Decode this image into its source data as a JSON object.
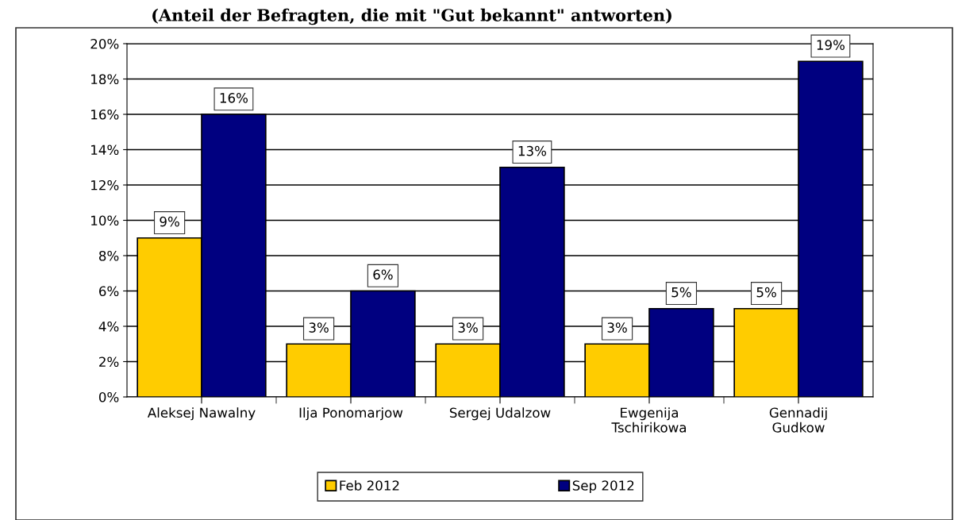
{
  "chart_data": {
    "type": "bar",
    "title": "(Anteil der Befragten, die mit \"Gut bekannt\" antworten)",
    "categories": [
      "Aleksej Nawalny",
      "Ilja Ponomarjow",
      "Sergej Udalzow",
      "Ewgenija\nTschirikowa",
      "Gennadij\nGudkow"
    ],
    "series": [
      {
        "name": "Feb 2012",
        "color": "#ffcc00",
        "values": [
          9,
          3,
          3,
          3,
          5
        ],
        "value_labels": [
          "9%",
          "3%",
          "3%",
          "3%",
          "5%"
        ]
      },
      {
        "name": "Sep 2012",
        "color": "#000080",
        "values": [
          16,
          6,
          13,
          5,
          19
        ],
        "value_labels": [
          "16%",
          "6%",
          "13%",
          "5%",
          "19%"
        ]
      }
    ],
    "ylim": [
      0,
      20
    ],
    "yticks": [
      {
        "value": 0,
        "label": "0%"
      },
      {
        "value": 2,
        "label": "2%"
      },
      {
        "value": 4,
        "label": "4%"
      },
      {
        "value": 6,
        "label": "6%"
      },
      {
        "value": 8,
        "label": "8%"
      },
      {
        "value": 10,
        "label": "10%"
      },
      {
        "value": 12,
        "label": "12%"
      },
      {
        "value": 14,
        "label": "14%"
      },
      {
        "value": 16,
        "label": "16%"
      },
      {
        "value": 18,
        "label": "18%"
      },
      {
        "value": 20,
        "label": "20%"
      }
    ],
    "grid": "y",
    "legend": "bottom"
  }
}
